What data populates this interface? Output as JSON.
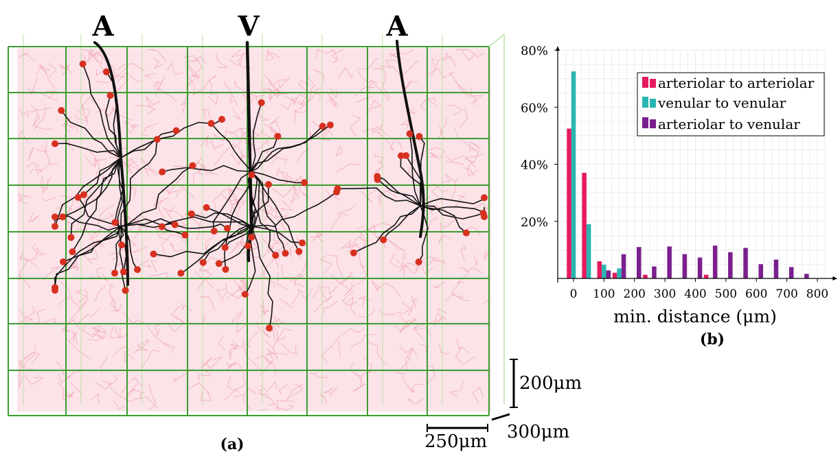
{
  "figure": {
    "panel_a": {
      "caption": "(a)",
      "vessel_labels": [
        "A",
        "V",
        "A"
      ],
      "scale_bars": {
        "vertical": "200μm",
        "horizontal": "250μm",
        "depth": "300μm"
      },
      "colors": {
        "capillary_bed": "#f2a9b8",
        "grid": "#3c9b2e",
        "grid_back": "#b9e0a8",
        "vessel_tree": "#111111",
        "terminal_points": "#d7301f"
      }
    },
    "panel_b": {
      "caption": "(b)"
    }
  },
  "chart_data": {
    "type": "bar",
    "xlabel": "min. distance (μm)",
    "ylabel": "",
    "xlim": [
      -50,
      830
    ],
    "ylim": [
      0,
      80
    ],
    "xticks": [
      0,
      100,
      200,
      300,
      400,
      500,
      600,
      700,
      800
    ],
    "yticks": [
      20,
      40,
      60,
      80
    ],
    "ytick_labels": [
      "20%",
      "40%",
      "60%",
      "80%"
    ],
    "grid": true,
    "legend_position": "top-right",
    "bin_width": 50,
    "series": [
      {
        "name": "arteriolar to arteriolar",
        "color": "#e6195f",
        "x": [
          0,
          50,
          100,
          150,
          250,
          450
        ],
        "values": [
          52.5,
          37,
          6,
          2,
          1.3,
          1.3
        ]
      },
      {
        "name": "venular to venular",
        "color": "#2bb5b0",
        "x": [
          0,
          50,
          100,
          150
        ],
        "values": [
          72.5,
          19,
          4.8,
          3.5
        ]
      },
      {
        "name": "arteriolar to venular",
        "color": "#7a1f8e",
        "x": [
          100,
          150,
          200,
          250,
          300,
          350,
          400,
          450,
          500,
          550,
          600,
          650,
          700,
          750,
          800
        ],
        "values": [
          2.8,
          8.5,
          11,
          4.2,
          11.2,
          8.5,
          7.3,
          11.5,
          9.2,
          10.7,
          5,
          6.6,
          4,
          1.6,
          0
        ]
      }
    ]
  }
}
